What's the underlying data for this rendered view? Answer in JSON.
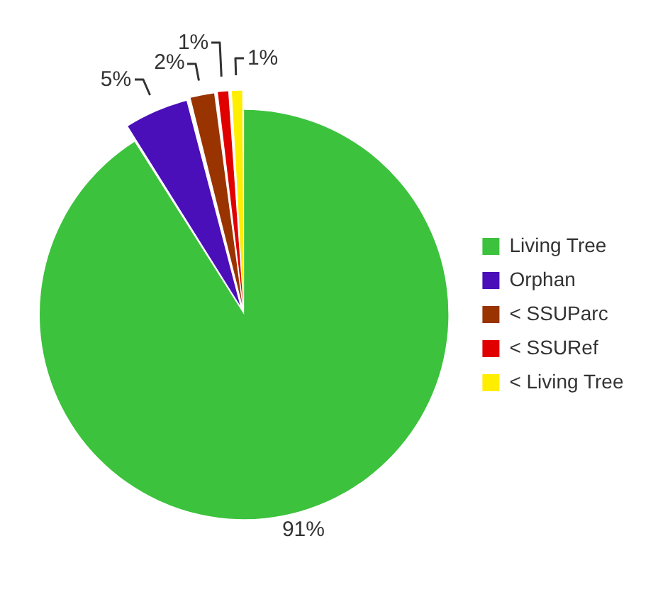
{
  "chart_data": {
    "type": "pie",
    "categories": [
      "Living Tree",
      "Orphan",
      "< SSUParc",
      "< SSURef",
      "< Living Tree"
    ],
    "values": [
      91,
      5,
      2,
      1,
      1
    ],
    "colors": [
      "#3cc23c",
      "#4a0fb8",
      "#993300",
      "#e00000",
      "#ffee00"
    ],
    "value_labels": [
      "91%",
      "5%",
      "2%",
      "1%",
      "1%"
    ],
    "legend": "right"
  }
}
